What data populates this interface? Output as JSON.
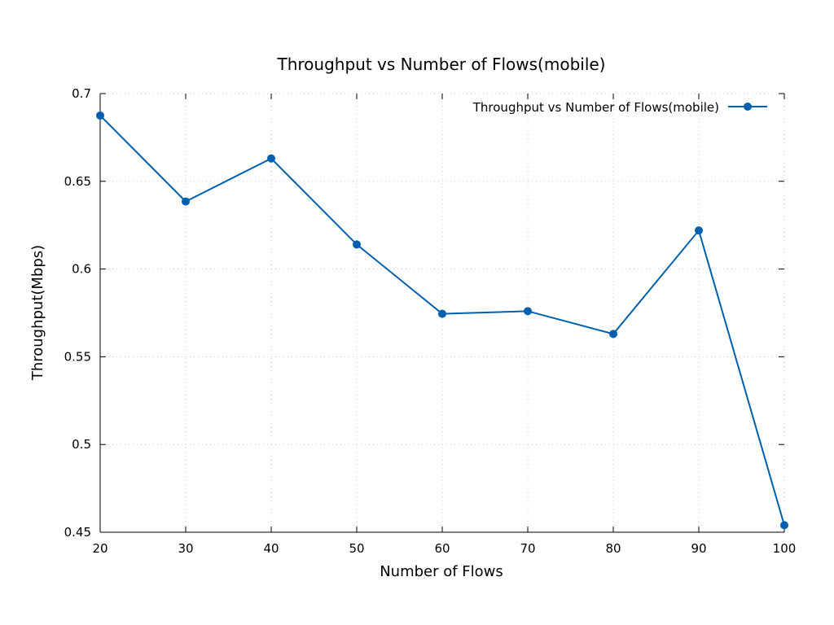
{
  "chart_data": {
    "type": "line",
    "title": "Throughput vs Number of Flows(mobile)",
    "xlabel": "Number of Flows",
    "ylabel": "Throughput(Mbps)",
    "xlim": [
      20,
      100
    ],
    "ylim": [
      0.45,
      0.7
    ],
    "x_ticks": [
      20,
      30,
      40,
      50,
      60,
      70,
      80,
      90,
      100
    ],
    "y_ticks": [
      0.45,
      0.5,
      0.55,
      0.6,
      0.65,
      0.7
    ],
    "x_tick_labels": [
      "20",
      "30",
      "40",
      "50",
      "60",
      "70",
      "80",
      "90",
      "100"
    ],
    "y_tick_labels": [
      "0.45",
      "0.5",
      "0.55",
      "0.6",
      "0.65",
      "0.7"
    ],
    "grid": true,
    "legend_position": "top-right",
    "series": [
      {
        "name": "Throughput vs Number of Flows(mobile)",
        "color": "#0060ad",
        "marker": "circle",
        "x": [
          20,
          30,
          40,
          50,
          60,
          70,
          80,
          90,
          100
        ],
        "y": [
          0.6875,
          0.6385,
          0.663,
          0.614,
          0.5745,
          0.576,
          0.563,
          0.622,
          0.454
        ]
      }
    ]
  }
}
